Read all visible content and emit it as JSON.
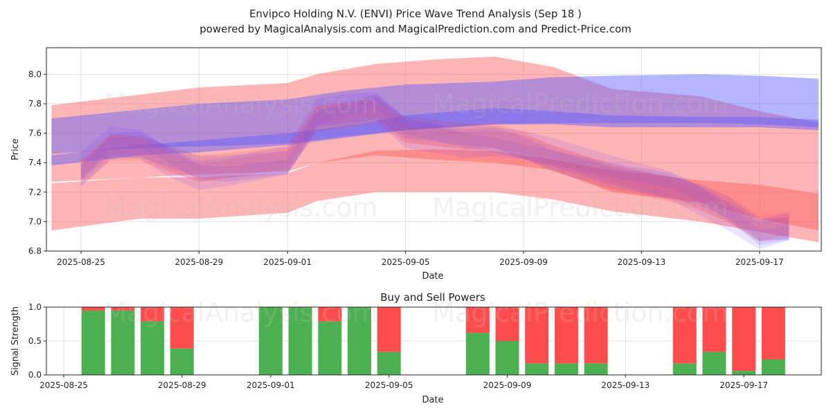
{
  "title_line1": "Envipco Holding N.V. (ENVI) Price Wave Trend Analysis (Sep 18 )",
  "title_line2": "powered by MagicalAnalysis.com and MagicalPrediction.com and Predict-Price.com",
  "watermarks": [
    "MagicalAnalysis.com",
    "MagicalPrediction.com"
  ],
  "colors": {
    "red_band": "#ff5a5a",
    "blue_band": "#5a5aff",
    "buy": "#4caf50",
    "sell": "#ff4d4d"
  },
  "chart_data": [
    {
      "type": "area",
      "title": "",
      "xlabel": "Date",
      "ylabel": "Price",
      "xlim": [
        "2025-08-24",
        "2025-09-19"
      ],
      "ylim": [
        6.8,
        8.18
      ],
      "yticks": [
        6.8,
        7.0,
        7.2,
        7.4,
        7.6,
        7.8,
        8.0
      ],
      "xticks": [
        "2025-08-25",
        "2025-08-29",
        "2025-09-01",
        "2025-09-05",
        "2025-09-09",
        "2025-09-13",
        "2025-09-17"
      ],
      "grid": true,
      "series": [
        {
          "color": "red",
          "x": [
            "2025-08-24",
            "2025-08-29",
            "2025-09-01",
            "2025-09-02",
            "2025-09-04",
            "2025-09-06",
            "2025-09-08",
            "2025-09-10",
            "2025-09-12",
            "2025-09-15",
            "2025-09-17",
            "2025-09-19"
          ],
          "upper": [
            7.79,
            7.91,
            7.94,
            8.0,
            8.07,
            8.1,
            8.12,
            8.05,
            7.9,
            7.85,
            7.75,
            7.67
          ],
          "lower": [
            7.27,
            7.32,
            7.34,
            7.4,
            7.45,
            7.42,
            7.4,
            7.35,
            7.2,
            7.13,
            7.02,
            6.94
          ]
        },
        {
          "color": "red",
          "x": [
            "2025-08-24",
            "2025-08-27",
            "2025-08-29",
            "2025-09-01",
            "2025-09-02",
            "2025-09-04",
            "2025-09-06",
            "2025-09-08",
            "2025-09-10",
            "2025-09-12",
            "2025-09-15",
            "2025-09-17",
            "2025-09-19"
          ],
          "upper": [
            7.26,
            7.3,
            7.3,
            7.33,
            7.4,
            7.48,
            7.49,
            7.48,
            7.42,
            7.35,
            7.28,
            7.25,
            7.19
          ],
          "lower": [
            6.94,
            7.02,
            7.02,
            7.06,
            7.14,
            7.2,
            7.2,
            7.2,
            7.15,
            7.07,
            7.0,
            6.93,
            6.86
          ]
        },
        {
          "color": "blue",
          "x": [
            "2025-08-24",
            "2025-08-27",
            "2025-08-29",
            "2025-09-01",
            "2025-09-03",
            "2025-09-05",
            "2025-09-08",
            "2025-09-10",
            "2025-09-12",
            "2025-09-15",
            "2025-09-17",
            "2025-09-19"
          ],
          "upper": [
            7.7,
            7.76,
            7.8,
            7.83,
            7.89,
            7.93,
            7.95,
            7.98,
            7.99,
            8.0,
            7.99,
            7.97
          ],
          "lower": [
            7.46,
            7.5,
            7.51,
            7.53,
            7.58,
            7.62,
            7.66,
            7.67,
            7.67,
            7.67,
            7.66,
            7.64
          ]
        },
        {
          "color": "blue",
          "x": [
            "2025-08-24",
            "2025-08-27",
            "2025-08-29",
            "2025-09-01",
            "2025-09-03",
            "2025-09-05",
            "2025-09-08",
            "2025-09-10",
            "2025-09-12",
            "2025-09-15",
            "2025-09-17",
            "2025-09-19"
          ],
          "upper": [
            7.45,
            7.52,
            7.55,
            7.6,
            7.65,
            7.72,
            7.77,
            7.75,
            7.72,
            7.71,
            7.71,
            7.69
          ],
          "lower": [
            7.38,
            7.45,
            7.47,
            7.52,
            7.57,
            7.62,
            7.66,
            7.66,
            7.64,
            7.64,
            7.64,
            7.62
          ]
        }
      ],
      "wave_trace": {
        "x": [
          "2025-08-25",
          "2025-08-26",
          "2025-08-27",
          "2025-08-28",
          "2025-08-29",
          "2025-08-30",
          "2025-09-01",
          "2025-09-02",
          "2025-09-03",
          "2025-09-04",
          "2025-09-05",
          "2025-09-07",
          "2025-09-08",
          "2025-09-09",
          "2025-09-10",
          "2025-09-12",
          "2025-09-14",
          "2025-09-15",
          "2025-09-16",
          "2025-09-17",
          "2025-09-18"
        ],
        "y": [
          7.33,
          7.5,
          7.5,
          7.42,
          7.36,
          7.38,
          7.42,
          7.7,
          7.72,
          7.76,
          7.62,
          7.58,
          7.58,
          7.52,
          7.43,
          7.3,
          7.22,
          7.16,
          7.08,
          6.95,
          6.97
        ]
      }
    },
    {
      "type": "bar",
      "title": "Buy and Sell Powers",
      "xlabel": "Date",
      "ylabel": "Signal Strength",
      "ylim": [
        0,
        1.0
      ],
      "yticks": [
        0.0,
        0.5,
        1.0
      ],
      "xticks": [
        "2025-08-25",
        "2025-08-29",
        "2025-09-01",
        "2025-09-05",
        "2025-09-09",
        "2025-09-13",
        "2025-09-17"
      ],
      "grid": true,
      "x": [
        "2025-08-26",
        "2025-08-27",
        "2025-08-28",
        "2025-08-29",
        "2025-09-01",
        "2025-09-02",
        "2025-09-03",
        "2025-09-04",
        "2025-09-05",
        "2025-09-08",
        "2025-09-09",
        "2025-09-10",
        "2025-09-11",
        "2025-09-12",
        "2025-09-15",
        "2025-09-16",
        "2025-09-17",
        "2025-09-18"
      ],
      "series": [
        {
          "values": [
            0.95,
            0.95,
            0.79,
            0.39,
            1.0,
            1.0,
            0.79,
            1.0,
            0.34,
            0.62,
            0.5,
            0.17,
            0.17,
            0.17,
            0.17,
            0.34,
            0.06,
            0.23
          ]
        },
        {
          "values": [
            0.05,
            0.05,
            0.21,
            0.61,
            0.0,
            0.0,
            0.21,
            0.0,
            0.66,
            0.38,
            0.5,
            0.83,
            0.83,
            0.83,
            0.83,
            0.66,
            0.94,
            0.77
          ]
        }
      ]
    }
  ]
}
